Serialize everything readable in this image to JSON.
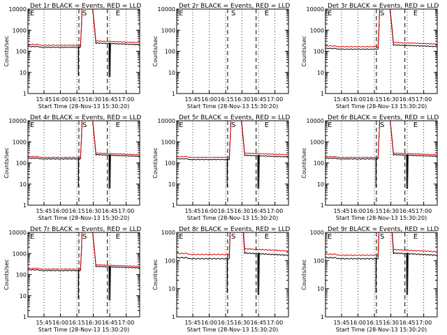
{
  "chart_data": [
    {
      "type": "line",
      "title": "Det 1r BLACK = Events, RED = LLD",
      "xlabel": "Start Time (28-Nov-13 15:30:20)",
      "ylabel": "Counts/sec",
      "x_ticks": [
        "15:45",
        "16:00",
        "16:15",
        "16:30",
        "16:45",
        "17:00"
      ],
      "y_ticks": [
        "1",
        "10",
        "100",
        "1000",
        "10000"
      ],
      "y_scale": "log",
      "ylim": [
        1,
        10000
      ],
      "markers": [
        "E",
        "S",
        "E"
      ],
      "events_level": 160,
      "lld_level": 200,
      "peak": true,
      "dips": true
    },
    {
      "type": "line",
      "title": "Det 2r BLACK = Events, RED = LLD",
      "xlabel": "Start Time (28-Nov-13 15:30:20)",
      "ylabel": "Counts/sec",
      "x_ticks": [
        "15:45",
        "16:00",
        "16:15",
        "16:30",
        "16:45",
        "17:00"
      ],
      "y_ticks": [
        "1",
        "10",
        "100",
        "1000",
        "10000"
      ],
      "y_scale": "log",
      "ylim": [
        1,
        10000
      ],
      "markers": [
        "E",
        "S",
        "E"
      ],
      "events_level": null,
      "lld_level": null,
      "peak": false,
      "dips": false
    },
    {
      "type": "line",
      "title": "Det 3r BLACK = Events, RED = LLD",
      "xlabel": "Start Time (28-Nov-13 15:30:20)",
      "ylabel": "Counts/sec",
      "x_ticks": [
        "15:45",
        "16:00",
        "16:15",
        "16:30",
        "16:45",
        "17:00"
      ],
      "y_ticks": [
        "1",
        "10",
        "100",
        "1000",
        "10000"
      ],
      "y_scale": "log",
      "ylim": [
        1,
        10000
      ],
      "markers": [
        "E",
        "S",
        "E"
      ],
      "events_level": 130,
      "lld_level": 170,
      "peak": true,
      "dips": false
    },
    {
      "type": "line",
      "title": "Det 4r BLACK = Events, RED = LLD",
      "xlabel": "Start Time (28-Nov-13 15:30:20)",
      "ylabel": "Counts/sec",
      "x_ticks": [
        "15:45",
        "16:00",
        "16:15",
        "16:30",
        "16:45",
        "17:00"
      ],
      "y_ticks": [
        "1",
        "10",
        "100",
        "1000",
        "10000"
      ],
      "y_scale": "log",
      "ylim": [
        1,
        10000
      ],
      "markers": [
        "E",
        "S",
        "E"
      ],
      "events_level": 160,
      "lld_level": 190,
      "peak": true,
      "dips": true
    },
    {
      "type": "line",
      "title": "Det 5r BLACK = Events, RED = LLD",
      "xlabel": "Start Time (28-Nov-13 15:30:20)",
      "ylabel": "Counts/sec",
      "x_ticks": [
        "15:45",
        "16:00",
        "16:15",
        "16:30",
        "16:45",
        "17:00"
      ],
      "y_ticks": [
        "1",
        "10",
        "100",
        "1000",
        "10000"
      ],
      "y_scale": "log",
      "ylim": [
        1,
        10000
      ],
      "markers": [
        "E",
        "S",
        "E"
      ],
      "events_level": 150,
      "lld_level": 190,
      "peak": true,
      "dips": true
    },
    {
      "type": "line",
      "title": "Det 6r BLACK = Events, RED = LLD",
      "xlabel": "Start Time (28-Nov-13 15:30:20)",
      "ylabel": "Counts/sec",
      "x_ticks": [
        "15:45",
        "16:00",
        "16:15",
        "16:30",
        "16:45",
        "17:00"
      ],
      "y_ticks": [
        "1",
        "10",
        "100",
        "1000",
        "10000"
      ],
      "y_scale": "log",
      "ylim": [
        1,
        10000
      ],
      "markers": [
        "E",
        "S",
        "E"
      ],
      "events_level": 160,
      "lld_level": 190,
      "peak": true,
      "dips": true
    },
    {
      "type": "line",
      "title": "Det 7r BLACK = Events, RED = LLD",
      "xlabel": "Start Time (28-Nov-13 15:30:20)",
      "ylabel": "Counts/sec",
      "x_ticks": [
        "15:45",
        "16:00",
        "16:15",
        "16:30",
        "16:45",
        "17:00"
      ],
      "y_ticks": [
        "1",
        "10",
        "100",
        "1000",
        "10000"
      ],
      "y_scale": "log",
      "ylim": [
        1,
        10000
      ],
      "markers": [
        "E",
        "S",
        "E"
      ],
      "events_level": 160,
      "lld_level": 190,
      "peak": true,
      "dips": true
    },
    {
      "type": "line",
      "title": "Det 8r BLACK = Events, RED = LLD",
      "xlabel": "Start Time (28-Nov-13 15:30:20)",
      "ylabel": "Counts/sec",
      "x_ticks": [
        "15:45",
        "16:00",
        "16:15",
        "16:30",
        "16:45",
        "17:00"
      ],
      "y_ticks": [
        "1",
        "10",
        "100",
        "1000"
      ],
      "y_scale": "log",
      "ylim": [
        1,
        1000
      ],
      "markers": [
        "E",
        "S",
        "E"
      ],
      "events_level": 120,
      "lld_level": 170,
      "peak": true,
      "dips": true
    },
    {
      "type": "line",
      "title": "Det 9r BLACK = Events, RED = LLD",
      "xlabel": "Start Time (28-Nov-13 15:30:20)",
      "ylabel": "Counts/sec",
      "x_ticks": [
        "15:45",
        "16:00",
        "16:15",
        "16:30",
        "16:45",
        "17:00"
      ],
      "y_ticks": [
        "1",
        "10",
        "100",
        "1000"
      ],
      "y_scale": "log",
      "ylim": [
        1,
        1000
      ],
      "markers": [
        "E",
        "S",
        "E"
      ],
      "events_level": 120,
      "lld_level": 160,
      "peak": true,
      "dips": true
    }
  ],
  "colors": {
    "events": "#000000",
    "lld": "#e00000"
  }
}
